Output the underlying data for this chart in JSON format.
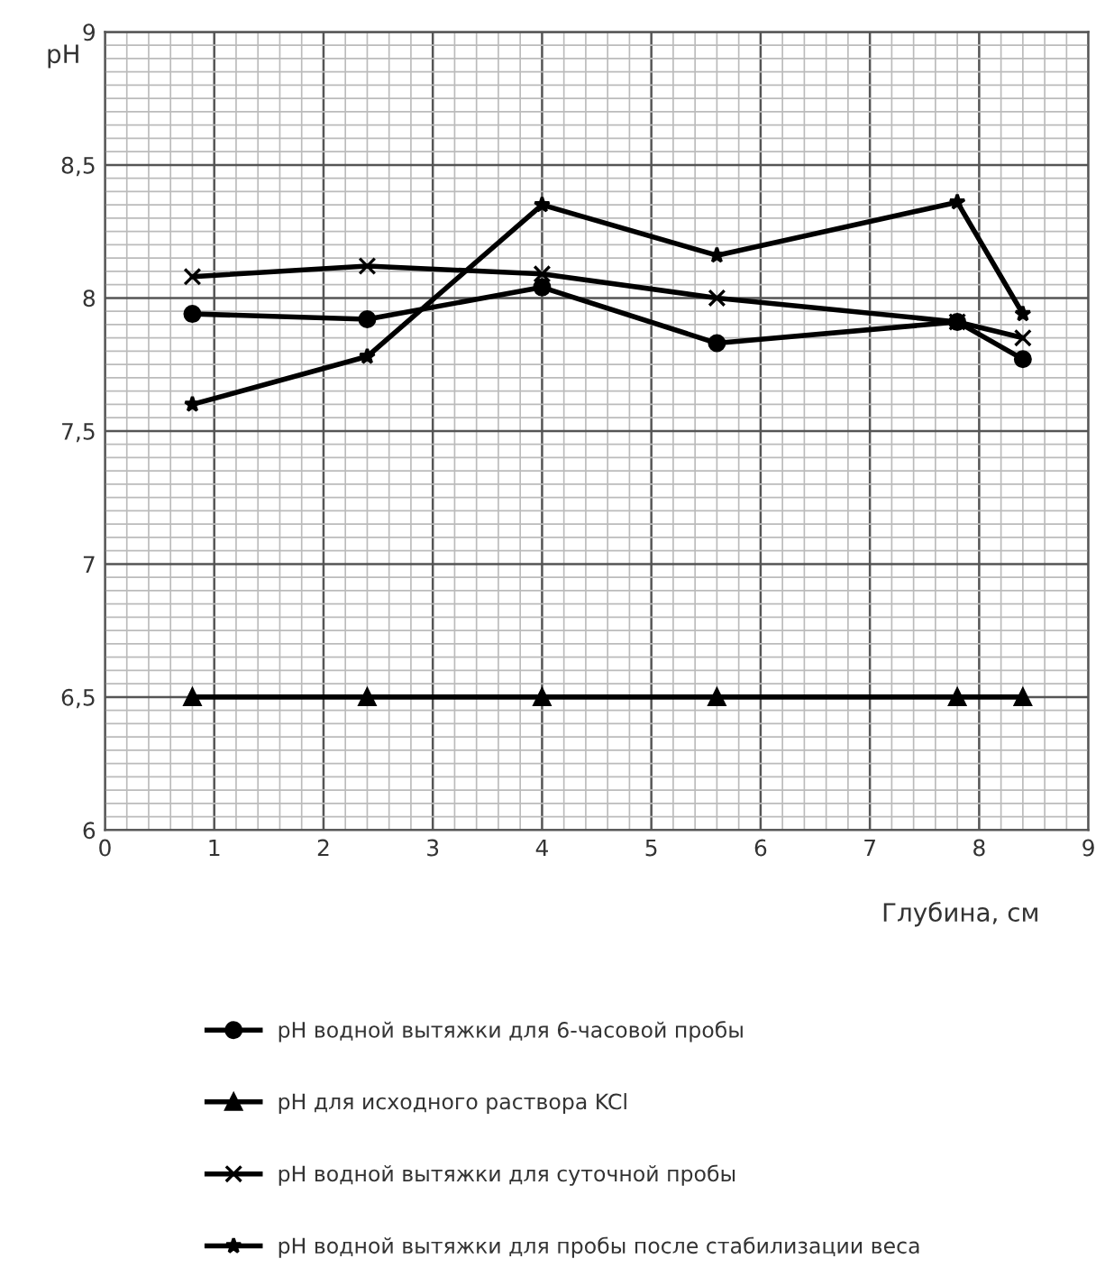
{
  "chart_data": {
    "type": "line",
    "xlabel": "Глубина, см",
    "ylabel": "pH",
    "xlim": [
      0,
      9
    ],
    "xticks": [
      0,
      1,
      2,
      3,
      4,
      5,
      6,
      7,
      8,
      9
    ],
    "ylim": [
      6,
      9
    ],
    "yticks": [
      6,
      {
        "value": 6.5,
        "label": "6,5"
      },
      7,
      {
        "value": 7.5,
        "label": "7,5"
      },
      8,
      {
        "value": 8.5,
        "label": "8,5"
      },
      9
    ],
    "grid": true,
    "legend": "bottom",
    "line_style": "solid",
    "x": [
      0.8,
      2.4,
      4,
      5.6,
      7.8,
      8.4
    ],
    "series": [
      {
        "name": "pH водной вытяжки для 6-часовой пробы",
        "color": "#000000",
        "marker": "circle",
        "values": [
          7.94,
          7.92,
          8.04,
          7.83,
          7.91,
          7.77
        ]
      },
      {
        "name": "pH для исходного раствора KCl",
        "color": "#000000",
        "marker": "triangle",
        "values": [
          6.5,
          6.5,
          6.5,
          6.5,
          6.5,
          6.5
        ]
      },
      {
        "name": "pH водной вытяжки для суточной пробы",
        "color": "#000000",
        "marker": "cross",
        "values": [
          8.08,
          8.12,
          8.09,
          8.0,
          7.91,
          7.85
        ]
      },
      {
        "name": "pH водной вытяжки для пробы после стабилизации веса",
        "color": "#000000",
        "marker": "star",
        "values": [
          7.6,
          7.78,
          8.35,
          8.16,
          8.36,
          7.94
        ]
      }
    ]
  }
}
